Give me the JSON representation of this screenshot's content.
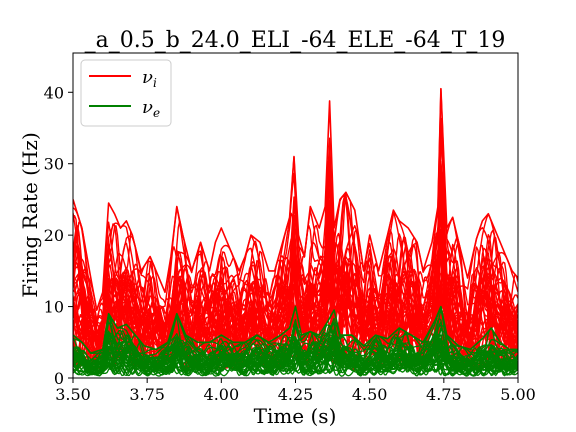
{
  "chart_data": {
    "type": "line",
    "title": "_a_0.5_b_24.0_ELI_-64_ELE_-64_T_19",
    "xlabel": "Time (s)",
    "ylabel": "Firing Rate (Hz)",
    "xlim": [
      3.5,
      5.0
    ],
    "ylim": [
      0,
      45.5
    ],
    "xticks": [
      3.5,
      3.75,
      4.0,
      4.25,
      4.5,
      4.75,
      5.0
    ],
    "xtick_labels": [
      "3.50",
      "3.75",
      "4.00",
      "4.25",
      "4.50",
      "4.75",
      "5.00"
    ],
    "yticks": [
      0,
      10,
      20,
      30,
      40
    ],
    "ytick_labels": [
      "0",
      "10",
      "20",
      "30",
      "40"
    ],
    "grid": false,
    "legend_position": "top-left",
    "series": [
      {
        "name": "νi",
        "legend_main": "ν",
        "legend_sub": "i",
        "color": "#ff0000",
        "envelope_upper": [
          [
            3.5,
            25.0
          ],
          [
            3.53,
            21.0
          ],
          [
            3.56,
            14.0
          ],
          [
            3.58,
            9.5
          ],
          [
            3.6,
            12.0
          ],
          [
            3.62,
            24.5
          ],
          [
            3.64,
            23.0
          ],
          [
            3.66,
            21.0
          ],
          [
            3.68,
            22.0
          ],
          [
            3.7,
            20.0
          ],
          [
            3.73,
            15.0
          ],
          [
            3.76,
            17.0
          ],
          [
            3.78,
            15.0
          ],
          [
            3.81,
            12.0
          ],
          [
            3.83,
            17.0
          ],
          [
            3.85,
            24.0
          ],
          [
            3.87,
            20.0
          ],
          [
            3.9,
            15.0
          ],
          [
            3.93,
            19.0
          ],
          [
            3.96,
            15.0
          ],
          [
            3.98,
            19.0
          ],
          [
            4.0,
            21.0
          ],
          [
            4.03,
            18.0
          ],
          [
            4.06,
            15.0
          ],
          [
            4.08,
            17.0
          ],
          [
            4.1,
            20.0
          ],
          [
            4.13,
            19.0
          ],
          [
            4.16,
            15.0
          ],
          [
            4.18,
            15.0
          ],
          [
            4.21,
            19.5
          ],
          [
            4.23,
            22.5
          ],
          [
            4.245,
            31.0
          ],
          [
            4.26,
            20.0
          ],
          [
            4.28,
            17.0
          ],
          [
            4.3,
            24.0
          ],
          [
            4.33,
            21.0
          ],
          [
            4.35,
            24.0
          ],
          [
            4.365,
            38.8
          ],
          [
            4.38,
            21.0
          ],
          [
            4.4,
            25.0
          ],
          [
            4.42,
            26.0
          ],
          [
            4.45,
            23.5
          ],
          [
            4.48,
            15.0
          ],
          [
            4.5,
            20.0
          ],
          [
            4.53,
            15.0
          ],
          [
            4.56,
            20.0
          ],
          [
            4.58,
            23.5
          ],
          [
            4.6,
            22.0
          ],
          [
            4.63,
            21.0
          ],
          [
            4.66,
            19.0
          ],
          [
            4.68,
            15.0
          ],
          [
            4.71,
            19.0
          ],
          [
            4.73,
            24.0
          ],
          [
            4.74,
            40.5
          ],
          [
            4.76,
            21.0
          ],
          [
            4.78,
            22.5
          ],
          [
            4.8,
            19.0
          ],
          [
            4.83,
            14.0
          ],
          [
            4.86,
            19.5
          ],
          [
            4.88,
            22.0
          ],
          [
            4.9,
            23.0
          ],
          [
            4.93,
            20.0
          ],
          [
            4.96,
            17.0
          ],
          [
            4.98,
            15.0
          ],
          [
            5.0,
            14.0
          ]
        ],
        "envelope_lower": [
          [
            3.5,
            1.5
          ],
          [
            3.55,
            1.0
          ],
          [
            3.6,
            1.2
          ],
          [
            3.65,
            2.0
          ],
          [
            3.7,
            1.5
          ],
          [
            3.75,
            1.0
          ],
          [
            3.8,
            1.2
          ],
          [
            3.85,
            0.8
          ],
          [
            3.9,
            1.0
          ],
          [
            3.95,
            1.5
          ],
          [
            4.0,
            1.0
          ],
          [
            4.05,
            1.2
          ],
          [
            4.1,
            1.5
          ],
          [
            4.15,
            1.0
          ],
          [
            4.2,
            1.5
          ],
          [
            4.25,
            2.0
          ],
          [
            4.3,
            1.5
          ],
          [
            4.35,
            2.0
          ],
          [
            4.4,
            1.5
          ],
          [
            4.45,
            1.0
          ],
          [
            4.5,
            1.5
          ],
          [
            4.55,
            1.2
          ],
          [
            4.6,
            1.5
          ],
          [
            4.65,
            1.0
          ],
          [
            4.7,
            1.5
          ],
          [
            4.75,
            2.0
          ],
          [
            4.8,
            1.2
          ],
          [
            4.85,
            1.0
          ],
          [
            4.9,
            1.5
          ],
          [
            4.95,
            1.2
          ],
          [
            5.0,
            1.5
          ]
        ]
      },
      {
        "name": "νe",
        "legend_main": "ν",
        "legend_sub": "e",
        "color": "#008000",
        "envelope_upper": [
          [
            3.5,
            6.0
          ],
          [
            3.53,
            5.0
          ],
          [
            3.56,
            3.5
          ],
          [
            3.6,
            4.0
          ],
          [
            3.62,
            9.0
          ],
          [
            3.65,
            7.0
          ],
          [
            3.68,
            7.5
          ],
          [
            3.71,
            6.0
          ],
          [
            3.74,
            4.5
          ],
          [
            3.78,
            4.0
          ],
          [
            3.82,
            5.0
          ],
          [
            3.85,
            9.0
          ],
          [
            3.88,
            6.0
          ],
          [
            3.92,
            5.0
          ],
          [
            3.96,
            5.0
          ],
          [
            4.0,
            6.0
          ],
          [
            4.04,
            5.0
          ],
          [
            4.08,
            5.0
          ],
          [
            4.12,
            6.0
          ],
          [
            4.16,
            5.0
          ],
          [
            4.2,
            6.0
          ],
          [
            4.23,
            7.0
          ],
          [
            4.25,
            10.0
          ],
          [
            4.27,
            6.0
          ],
          [
            4.3,
            6.5
          ],
          [
            4.33,
            6.0
          ],
          [
            4.36,
            8.0
          ],
          [
            4.38,
            9.5
          ],
          [
            4.4,
            6.0
          ],
          [
            4.44,
            6.0
          ],
          [
            4.48,
            4.5
          ],
          [
            4.52,
            6.0
          ],
          [
            4.56,
            5.5
          ],
          [
            4.6,
            7.0
          ],
          [
            4.64,
            6.0
          ],
          [
            4.68,
            5.0
          ],
          [
            4.72,
            8.0
          ],
          [
            4.74,
            10.0
          ],
          [
            4.76,
            6.0
          ],
          [
            4.8,
            4.5
          ],
          [
            4.84,
            4.0
          ],
          [
            4.88,
            5.5
          ],
          [
            4.91,
            7.0
          ],
          [
            4.94,
            5.0
          ],
          [
            4.97,
            4.0
          ],
          [
            5.0,
            4.0
          ]
        ],
        "envelope_lower": [
          [
            3.5,
            0.3
          ],
          [
            3.6,
            0.2
          ],
          [
            3.7,
            0.3
          ],
          [
            3.8,
            0.2
          ],
          [
            3.9,
            0.3
          ],
          [
            4.0,
            0.2
          ],
          [
            4.1,
            0.3
          ],
          [
            4.2,
            0.2
          ],
          [
            4.3,
            0.3
          ],
          [
            4.4,
            0.2
          ],
          [
            4.5,
            0.3
          ],
          [
            4.6,
            0.2
          ],
          [
            4.7,
            0.3
          ],
          [
            4.8,
            0.2
          ],
          [
            4.9,
            0.3
          ],
          [
            5.0,
            0.3
          ]
        ]
      }
    ]
  }
}
